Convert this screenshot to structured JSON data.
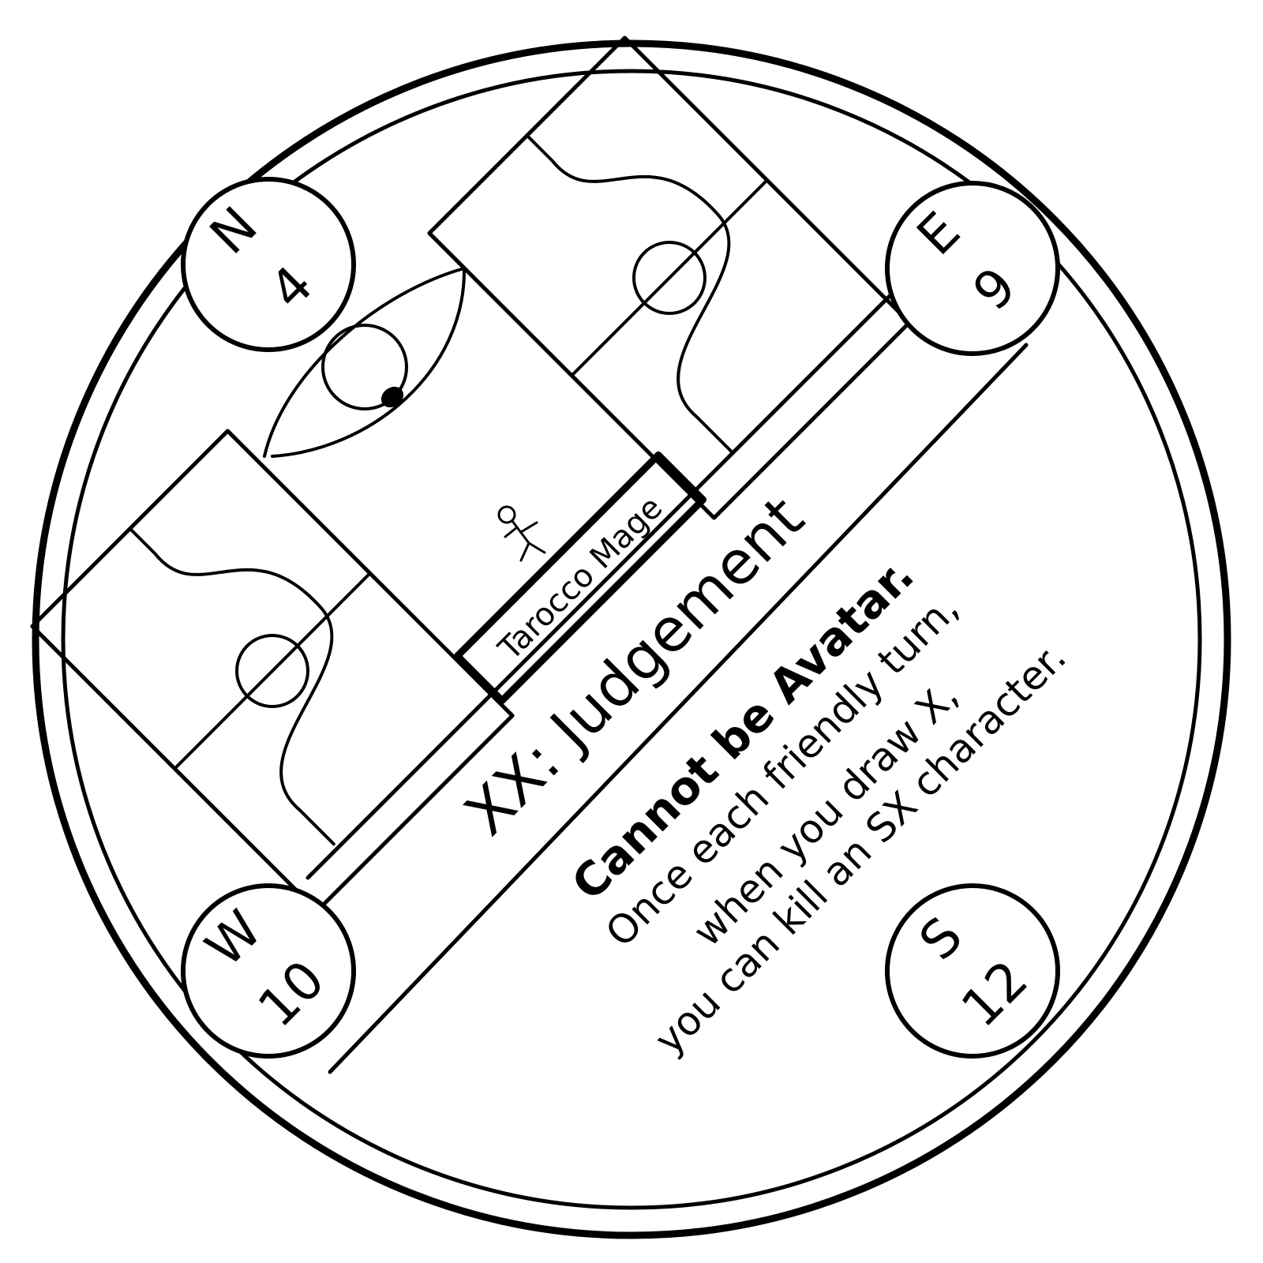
{
  "token": {
    "character_label": "Tarocco Mage",
    "title": "XX: Judgement",
    "ability_bold": "Cannot be Avatar.",
    "ability_lines": [
      "Once each friendly turn,",
      "when you draw X,",
      "you can kill an SX character."
    ],
    "colors": {
      "ink": "#000000",
      "background": "#ffffff"
    }
  },
  "compass": {
    "north": {
      "letter": "N",
      "value": "4"
    },
    "east": {
      "letter": "E",
      "value": "9"
    },
    "west": {
      "letter": "W",
      "value": "10"
    },
    "south": {
      "letter": "S",
      "value": "12"
    }
  }
}
